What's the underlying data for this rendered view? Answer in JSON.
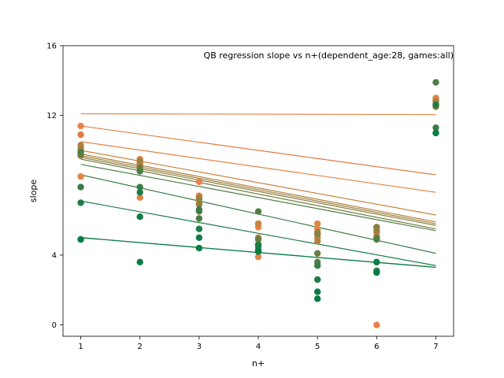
{
  "chart_data": {
    "type": "scatter",
    "title": "QB regression slope vs n+(dependent_age:28, games:all)",
    "xlabel": "n+",
    "ylabel": "slope",
    "xlim": [
      0.7,
      7.3
    ],
    "ylim": [
      -0.65,
      16
    ],
    "xticks": [
      1,
      2,
      3,
      4,
      5,
      6,
      7
    ],
    "yticks": [
      0,
      4,
      12,
      16
    ],
    "grid": false,
    "legend": "none",
    "series": [
      {
        "color": "#e8834a",
        "points": [
          [
            1,
            11.4
          ],
          [
            2,
            9.5
          ],
          [
            3,
            8.2
          ],
          [
            4,
            5.6
          ],
          [
            5,
            5.5
          ],
          [
            6,
            0.0
          ],
          [
            7,
            12.8
          ]
        ],
        "line": [
          12.1,
          12.05
        ]
      },
      {
        "color": "#e07d47",
        "points": [
          [
            1,
            10.9
          ],
          [
            2,
            9.1
          ],
          [
            3,
            7.4
          ],
          [
            4,
            5.8
          ],
          [
            5,
            5.2
          ],
          [
            6,
            5.0
          ],
          [
            7,
            12.9
          ]
        ],
        "line": [
          11.4,
          8.6
        ]
      },
      {
        "color": "#e08447",
        "points": [
          [
            1,
            8.5
          ],
          [
            2,
            7.3
          ],
          [
            3,
            6.6
          ],
          [
            4,
            3.9
          ],
          [
            5,
            5.8
          ],
          [
            6,
            5.1
          ],
          [
            7,
            13.0
          ]
        ],
        "line": [
          10.5,
          7.6
        ]
      },
      {
        "color": "#c8843f",
        "points": [
          [
            1,
            10.0
          ],
          [
            2,
            9.2
          ],
          [
            3,
            7.0
          ],
          [
            4,
            5.8
          ],
          [
            5,
            5.0
          ],
          [
            6,
            5.3
          ],
          [
            7,
            12.7
          ]
        ],
        "line": [
          10.0,
          6.3
        ]
      },
      {
        "color": "#b0823e",
        "points": [
          [
            1,
            10.3
          ],
          [
            2,
            9.3
          ],
          [
            3,
            7.3
          ],
          [
            4,
            5.0
          ],
          [
            5,
            4.8
          ],
          [
            6,
            5.6
          ],
          [
            7,
            12.6
          ]
        ],
        "line": [
          9.8,
          5.9
        ]
      },
      {
        "color": "#9e813f",
        "points": [
          [
            1,
            10.1
          ],
          [
            2,
            9.4
          ],
          [
            3,
            7.2
          ],
          [
            4,
            4.9
          ],
          [
            5,
            5.3
          ],
          [
            6,
            5.4
          ],
          [
            7,
            12.8
          ]
        ],
        "line": [
          9.7,
          5.8
        ]
      },
      {
        "color": "#8b803f",
        "points": [
          [
            1,
            9.7
          ],
          [
            2,
            8.9
          ],
          [
            3,
            6.9
          ],
          [
            4,
            4.6
          ],
          [
            5,
            5.2
          ],
          [
            6,
            5.6
          ],
          [
            7,
            12.5
          ]
        ],
        "line": [
          9.6,
          5.7
        ]
      },
      {
        "color": "#6b7e40",
        "points": [
          [
            1,
            9.8
          ],
          [
            2,
            9.0
          ],
          [
            3,
            6.5
          ],
          [
            4,
            4.9
          ],
          [
            5,
            4.1
          ],
          [
            6,
            5.0
          ],
          [
            7,
            11.0
          ]
        ],
        "line": [
          9.5,
          5.5
        ]
      },
      {
        "color": "#4f7d45",
        "points": [
          [
            1,
            9.9
          ],
          [
            2,
            8.8
          ],
          [
            3,
            6.1
          ],
          [
            4,
            6.5
          ],
          [
            5,
            3.6
          ],
          [
            6,
            4.9
          ],
          [
            7,
            13.9
          ]
        ],
        "line": [
          9.2,
          5.4
        ]
      },
      {
        "color": "#3a7c48",
        "points": [
          [
            1,
            7.9
          ],
          [
            2,
            7.9
          ],
          [
            3,
            6.6
          ],
          [
            4,
            4.5
          ],
          [
            5,
            3.4
          ],
          [
            6,
            3.6
          ],
          [
            7,
            11.3
          ]
        ],
        "line": [
          8.6,
          4.1
        ]
      },
      {
        "color": "#1f7c47",
        "points": [
          [
            1,
            7.0
          ],
          [
            2,
            7.6
          ],
          [
            3,
            5.5
          ],
          [
            4,
            4.6
          ],
          [
            5,
            2.6
          ],
          [
            6,
            3.1
          ],
          [
            7,
            12.6
          ]
        ],
        "line": [
          7.1,
          3.4
        ]
      },
      {
        "color": "#0f7c45",
        "points": [
          [
            1,
            4.9
          ],
          [
            2,
            6.2
          ],
          [
            3,
            5.0
          ],
          [
            4,
            4.3
          ],
          [
            5,
            1.9
          ],
          [
            6,
            3.6
          ],
          [
            7,
            11.0
          ]
        ],
        "line": [
          5.0,
          3.3
        ]
      },
      {
        "color": "#077d44",
        "points": [
          [
            1,
            4.9
          ],
          [
            2,
            3.6
          ],
          [
            3,
            4.4
          ],
          [
            4,
            4.2
          ],
          [
            5,
            1.5
          ],
          [
            6,
            3.0
          ],
          [
            7,
            11.0
          ]
        ],
        "line": [
          5.0,
          3.3
        ]
      }
    ]
  }
}
